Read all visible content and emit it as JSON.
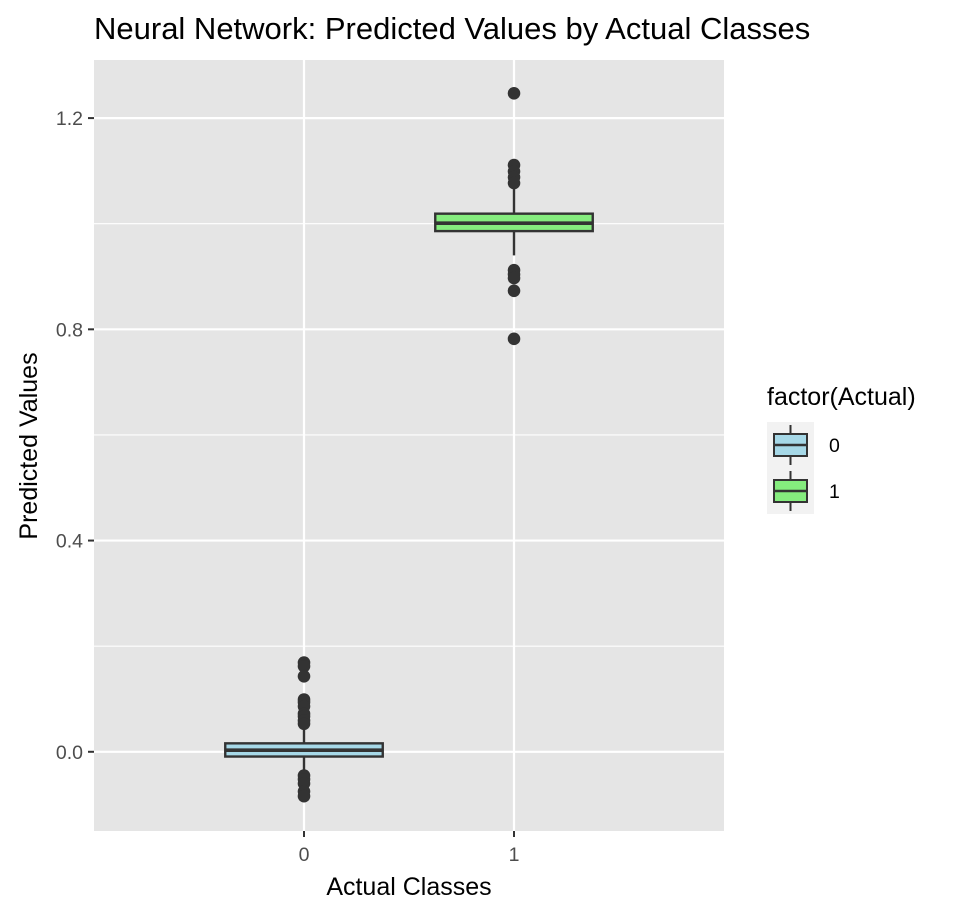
{
  "chart_data": {
    "type": "boxplot",
    "title": "Neural Network: Predicted Values by Actual Classes",
    "xlabel": "Actual Classes",
    "ylabel": "Predicted Values",
    "categories": [
      "0",
      "1"
    ],
    "ylim": [
      -0.15,
      1.31
    ],
    "y_ticks": [
      0.0,
      0.4,
      0.8,
      1.2
    ],
    "y_tick_labels": [
      "0.0",
      "0.4",
      "0.8",
      "1.2"
    ],
    "grid": true,
    "legend": {
      "title": "factor(Actual)",
      "placement": "right",
      "entries": [
        {
          "label": "0",
          "color": "#a6d8e7"
        },
        {
          "label": "1",
          "color": "#85ec7e"
        }
      ]
    },
    "series": [
      {
        "category": "0",
        "fill": "#a6d8e7",
        "q1": -0.009,
        "median": 0.003,
        "q3": 0.016,
        "whisker_low": -0.041,
        "whisker_high": 0.053,
        "outliers": [
          0.169,
          0.162,
          0.143,
          0.099,
          0.094,
          0.086,
          0.072,
          0.067,
          0.059,
          0.053,
          -0.045,
          -0.052,
          -0.06,
          -0.075,
          -0.084
        ]
      },
      {
        "category": "1",
        "fill": "#85ec7e",
        "q1": 0.986,
        "median": 1.001,
        "q3": 1.019,
        "whisker_low": 0.94,
        "whisker_high": 1.067,
        "outliers": [
          1.247,
          1.111,
          1.099,
          1.088,
          1.077,
          0.912,
          0.904,
          0.897,
          0.873,
          0.782
        ]
      }
    ]
  }
}
